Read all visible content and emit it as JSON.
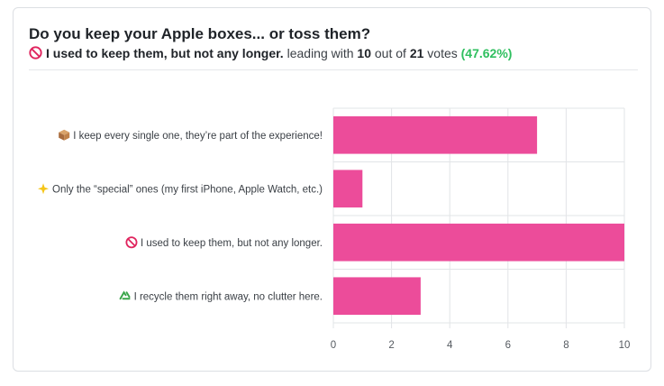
{
  "poll": {
    "title": "Do you keep your Apple boxes... or toss them?",
    "leader_label": "I used to keep them, but not any longer.",
    "leading_with_text": "leading with",
    "leader_votes": "10",
    "out_of_text": "out of",
    "total_votes": "21",
    "votes_text": "votes",
    "leader_percent": "(47.62%)",
    "leader_icon": "no-entry-icon"
  },
  "colors": {
    "bar": "#ec4c9a",
    "percent": "#2fbf5f",
    "grid": "#e2e4e7"
  },
  "chart_data": {
    "type": "bar",
    "orientation": "horizontal",
    "categories": [
      "I keep every single one, they’re part of the experience!",
      "Only the “special” ones (my first iPhone, Apple Watch, etc.)",
      "I used to keep them, but not any longer.",
      "I recycle them right away, no clutter here."
    ],
    "category_icons": [
      "package-icon",
      "sparkle-icon",
      "no-entry-icon",
      "recycle-icon"
    ],
    "values": [
      7,
      1,
      10,
      3
    ],
    "xlim": [
      0,
      10
    ],
    "xticks": [
      0,
      2,
      4,
      6,
      8,
      10
    ],
    "grid": true
  }
}
